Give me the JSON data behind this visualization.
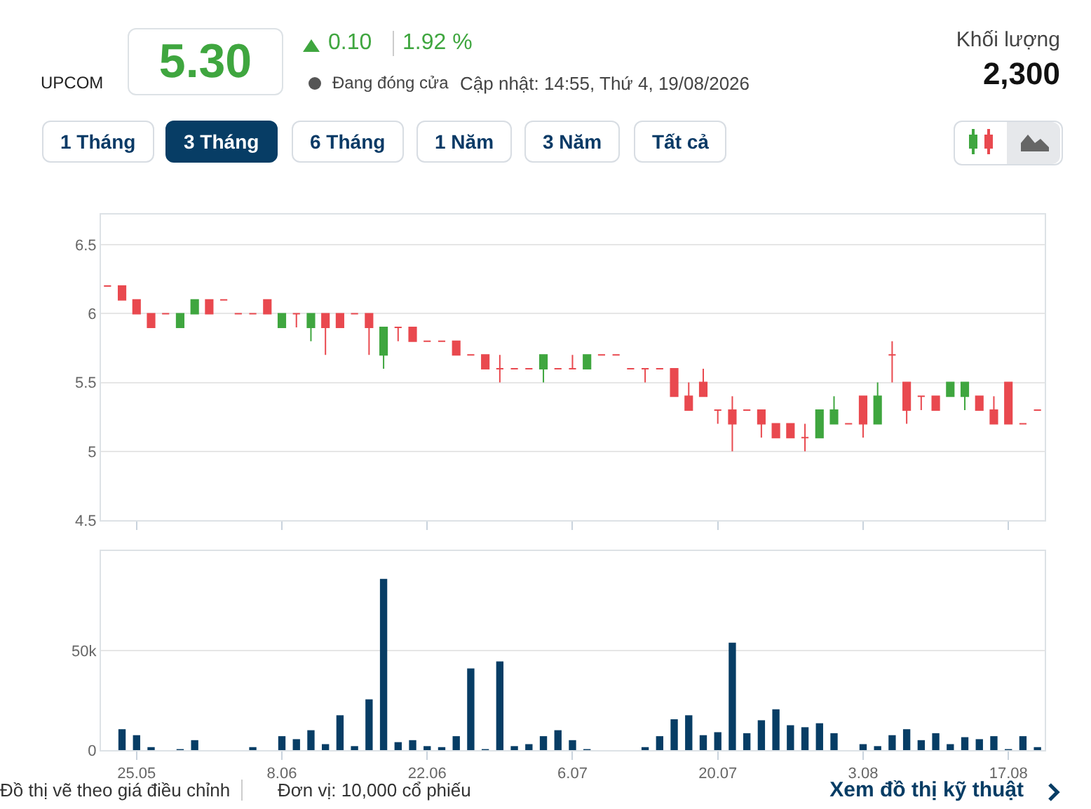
{
  "chart_data": [
    {
      "type": "other",
      "title": "5.30",
      "annotations": [
        "UPCOM",
        "0.10",
        "1.92 %",
        "Đang đóng cửa",
        "Cập nhật: 14:55, Thứ 4, 19/08/2026",
        "Khối lượng",
        "2,300",
        "1 Tháng",
        "3 Tháng",
        "6 Tháng",
        "1 Năm",
        "3 Năm",
        "Tất cả"
      ]
    },
    {
      "type": "candlestick",
      "categories": [
        null,
        null,
        "25.05",
        null,
        null,
        null,
        null,
        null,
        null,
        null,
        null,
        null,
        "8.06",
        null,
        null,
        null,
        null,
        null,
        null,
        null,
        null,
        null,
        "22.06",
        null,
        null,
        null,
        null,
        null,
        null,
        null,
        null,
        null,
        "6.07",
        null,
        null,
        null,
        null,
        null,
        null,
        null,
        null,
        null,
        "20.07",
        null,
        null,
        null,
        null,
        null,
        null,
        null,
        null,
        null,
        "3.08",
        null,
        null,
        null,
        null,
        null,
        null,
        null,
        null,
        null,
        "17.08",
        null,
        null
      ],
      "ohlc": [
        [
          6.2,
          6.2,
          6.2,
          6.2
        ],
        [
          6.2,
          6.2,
          6.1,
          6.1
        ],
        [
          6.1,
          6.1,
          6.0,
          6.0
        ],
        [
          6.0,
          6.0,
          5.9,
          5.9
        ],
        [
          6.0,
          6.0,
          6.0,
          6.0
        ],
        [
          5.9,
          6.0,
          5.9,
          6.0
        ],
        [
          6.0,
          6.1,
          6.0,
          6.1
        ],
        [
          6.1,
          6.1,
          6.0,
          6.0
        ],
        [
          6.1,
          6.1,
          6.1,
          6.1
        ],
        [
          6.0,
          6.0,
          6.0,
          6.0
        ],
        [
          6.0,
          6.0,
          6.0,
          6.0
        ],
        [
          6.1,
          6.1,
          6.0,
          6.0
        ],
        [
          5.9,
          6.0,
          5.9,
          6.0
        ],
        [
          6.0,
          6.0,
          5.9,
          6.0
        ],
        [
          5.9,
          6.0,
          5.8,
          6.0
        ],
        [
          6.0,
          6.0,
          5.7,
          5.9
        ],
        [
          6.0,
          6.0,
          5.9,
          5.9
        ],
        [
          6.0,
          6.0,
          6.0,
          6.0
        ],
        [
          6.0,
          6.0,
          5.7,
          5.9
        ],
        [
          5.7,
          5.9,
          5.6,
          5.9
        ],
        [
          5.9,
          5.9,
          5.8,
          5.9
        ],
        [
          5.9,
          5.9,
          5.8,
          5.8
        ],
        [
          5.8,
          5.8,
          5.8,
          5.8
        ],
        [
          5.8,
          5.8,
          5.8,
          5.8
        ],
        [
          5.8,
          5.8,
          5.7,
          5.7
        ],
        [
          5.7,
          5.7,
          5.7,
          5.7
        ],
        [
          5.7,
          5.7,
          5.6,
          5.6
        ],
        [
          5.6,
          5.7,
          5.5,
          5.6
        ],
        [
          5.6,
          5.6,
          5.6,
          5.6
        ],
        [
          5.6,
          5.6,
          5.6,
          5.6
        ],
        [
          5.6,
          5.7,
          5.5,
          5.7
        ],
        [
          5.6,
          5.6,
          5.6,
          5.6
        ],
        [
          5.6,
          5.7,
          5.6,
          5.6
        ],
        [
          5.6,
          5.7,
          5.6,
          5.7
        ],
        [
          5.7,
          5.7,
          5.7,
          5.7
        ],
        [
          5.7,
          5.7,
          5.7,
          5.7
        ],
        [
          5.6,
          5.6,
          5.6,
          5.6
        ],
        [
          5.6,
          5.6,
          5.5,
          5.6
        ],
        [
          5.6,
          5.6,
          5.6,
          5.6
        ],
        [
          5.6,
          5.6,
          5.4,
          5.4
        ],
        [
          5.4,
          5.5,
          5.3,
          5.3
        ],
        [
          5.5,
          5.6,
          5.4,
          5.4
        ],
        [
          5.3,
          5.3,
          5.2,
          5.3
        ],
        [
          5.3,
          5.4,
          5.0,
          5.2
        ],
        [
          5.3,
          5.3,
          5.3,
          5.3
        ],
        [
          5.3,
          5.3,
          5.1,
          5.2
        ],
        [
          5.2,
          5.2,
          5.1,
          5.1
        ],
        [
          5.2,
          5.2,
          5.1,
          5.1
        ],
        [
          5.1,
          5.2,
          5.0,
          5.1
        ],
        [
          5.1,
          5.3,
          5.1,
          5.3
        ],
        [
          5.2,
          5.4,
          5.2,
          5.3
        ],
        [
          5.2,
          5.2,
          5.2,
          5.2
        ],
        [
          5.4,
          5.4,
          5.1,
          5.2
        ],
        [
          5.2,
          5.5,
          5.2,
          5.4
        ],
        [
          5.7,
          5.8,
          5.5,
          5.7
        ],
        [
          5.5,
          5.5,
          5.2,
          5.3
        ],
        [
          5.4,
          5.4,
          5.3,
          5.4
        ],
        [
          5.4,
          5.4,
          5.3,
          5.3
        ],
        [
          5.4,
          5.5,
          5.4,
          5.5
        ],
        [
          5.4,
          5.5,
          5.3,
          5.5
        ],
        [
          5.4,
          5.4,
          5.3,
          5.3
        ],
        [
          5.3,
          5.4,
          5.2,
          5.2
        ],
        [
          5.5,
          5.5,
          5.2,
          5.2
        ],
        [
          5.2,
          5.2,
          5.2,
          5.2
        ],
        [
          5.3,
          5.3,
          5.3,
          5.3
        ]
      ],
      "colors": [
        "#e9494f",
        "#e9494f",
        "#e9494f",
        "#e9494f",
        "#e9494f",
        "#3fa63f",
        "#3fa63f",
        "#e9494f",
        "#e9494f",
        "#e9494f",
        "#e9494f",
        "#e9494f",
        "#3fa63f",
        "#e9494f",
        "#3fa63f",
        "#e9494f",
        "#e9494f",
        "#e9494f",
        "#e9494f",
        "#3fa63f",
        "#e9494f",
        "#e9494f",
        "#e9494f",
        "#e9494f",
        "#e9494f",
        "#e9494f",
        "#e9494f",
        "#e9494f",
        "#e9494f",
        "#e9494f",
        "#3fa63f",
        "#e9494f",
        "#e9494f",
        "#3fa63f",
        "#e9494f",
        "#e9494f",
        "#e9494f",
        "#e9494f",
        "#e9494f",
        "#e9494f",
        "#e9494f",
        "#e9494f",
        "#e9494f",
        "#e9494f",
        "#e9494f",
        "#e9494f",
        "#e9494f",
        "#e9494f",
        "#e9494f",
        "#3fa63f",
        "#3fa63f",
        "#e9494f",
        "#e9494f",
        "#3fa63f",
        "#e9494f",
        "#e9494f",
        "#e9494f",
        "#e9494f",
        "#3fa63f",
        "#3fa63f",
        "#e9494f",
        "#e9494f",
        "#e9494f",
        "#e9494f",
        "#e9494f"
      ],
      "ylim": [
        4.5,
        6.72
      ],
      "yticks": [
        4.5,
        5,
        5.5,
        6,
        6.5
      ],
      "grid": "y",
      "tick_labels": "y"
    },
    {
      "type": "bar",
      "categories": [
        null,
        null,
        "25.05",
        null,
        null,
        null,
        null,
        null,
        null,
        null,
        null,
        null,
        "8.06",
        null,
        null,
        null,
        null,
        null,
        null,
        null,
        null,
        null,
        "22.06",
        null,
        null,
        null,
        null,
        null,
        null,
        null,
        null,
        null,
        "6.07",
        null,
        null,
        null,
        null,
        null,
        null,
        null,
        null,
        null,
        "20.07",
        null,
        null,
        null,
        null,
        null,
        null,
        null,
        null,
        null,
        "3.08",
        null,
        null,
        null,
        null,
        null,
        null,
        null,
        null,
        null,
        "17.08",
        null,
        null
      ],
      "values": [
        0,
        10500,
        7500,
        1500,
        0,
        500,
        5000,
        0,
        0,
        0,
        1500,
        0,
        7000,
        5500,
        10000,
        3000,
        17500,
        2000,
        25500,
        86000,
        4000,
        5000,
        2000,
        1500,
        7000,
        41000,
        500,
        44500,
        2000,
        3000,
        7000,
        10000,
        5000,
        500,
        0,
        0,
        0,
        1500,
        7000,
        15500,
        17500,
        7500,
        9000,
        54000,
        8500,
        15000,
        20500,
        12500,
        11500,
        13500,
        8500,
        0,
        3000,
        2000,
        7500,
        10500,
        5000,
        8500,
        3000,
        6500,
        5500,
        7000,
        500,
        7000,
        1500
      ],
      "color": "#073d65",
      "ylim": [
        0,
        100000
      ],
      "yticks": [
        0,
        {
          "value": 50000,
          "label": "50k"
        }
      ],
      "grid": "y",
      "annotations": [
        "Đồ thị vẽ theo giá điều chỉnh",
        "Đơn vị: 10,000 cổ phiếu",
        "Xem đồ thị kỹ thuật"
      ]
    }
  ]
}
